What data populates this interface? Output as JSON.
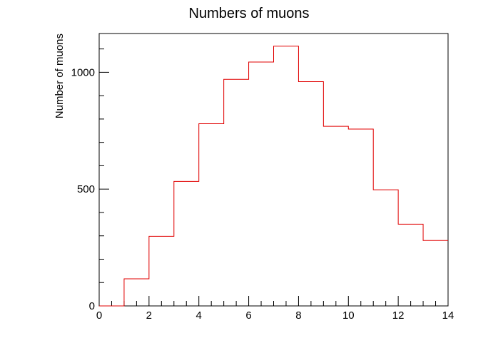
{
  "chart_data": {
    "type": "histogram",
    "title": "Numbers of muons",
    "xlabel": "",
    "ylabel": "Number of muons",
    "xlim": [
      0,
      14
    ],
    "ylim": [
      0,
      1166
    ],
    "grid": false,
    "x_ticks": [
      "0",
      "2",
      "4",
      "6",
      "8",
      "10",
      "12",
      "14"
    ],
    "y_ticks": [
      "0",
      "500",
      "1000"
    ],
    "series": [
      {
        "bin_edges": [
          0,
          1,
          2,
          3,
          4,
          5,
          6,
          7,
          8,
          9,
          10,
          11,
          12,
          13,
          14
        ],
        "values": [
          0,
          116,
          298,
          533,
          780,
          970,
          1044,
          1112,
          960,
          769,
          757,
          497,
          350,
          280
        ],
        "color": "#e00000"
      }
    ]
  }
}
